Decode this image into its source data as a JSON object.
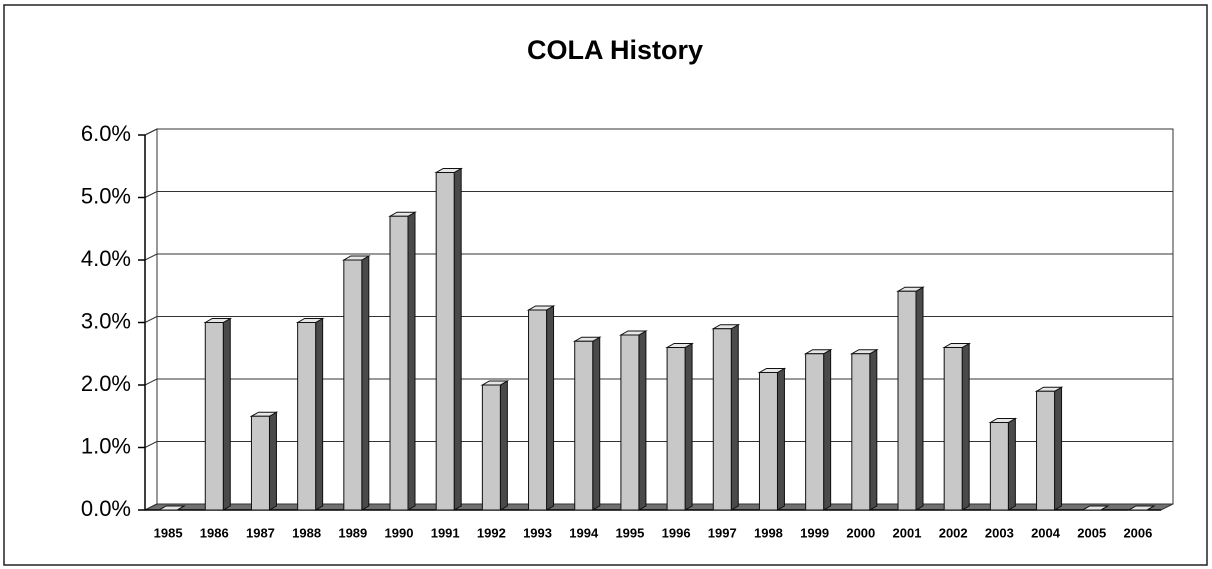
{
  "chart_data": {
    "type": "bar3d",
    "title": "COLA History",
    "categories": [
      "1985",
      "1986",
      "1987",
      "1988",
      "1989",
      "1990",
      "1991",
      "1992",
      "1993",
      "1994",
      "1995",
      "1996",
      "1997",
      "1998",
      "1999",
      "2000",
      "2001",
      "2002",
      "2003",
      "2004",
      "2005",
      "2006"
    ],
    "values": [
      0,
      3.0,
      1.5,
      3.0,
      4.0,
      4.7,
      5.4,
      2.0,
      3.2,
      2.7,
      2.8,
      2.6,
      2.9,
      2.2,
      2.5,
      2.5,
      3.5,
      2.6,
      1.4,
      1.9,
      0,
      0
    ],
    "color": "#c8c8c8",
    "ylim": [
      0,
      6
    ],
    "yticks": [
      {
        "value": 0,
        "label": "0.0%"
      },
      {
        "value": 1,
        "label": "1.0%"
      },
      {
        "value": 2,
        "label": "2.0%"
      },
      {
        "value": 3,
        "label": "3.0%"
      },
      {
        "value": 4,
        "label": "4.0%"
      },
      {
        "value": 5,
        "label": "5.0%"
      },
      {
        "value": 6,
        "label": "6.0%"
      }
    ],
    "grid": true
  }
}
